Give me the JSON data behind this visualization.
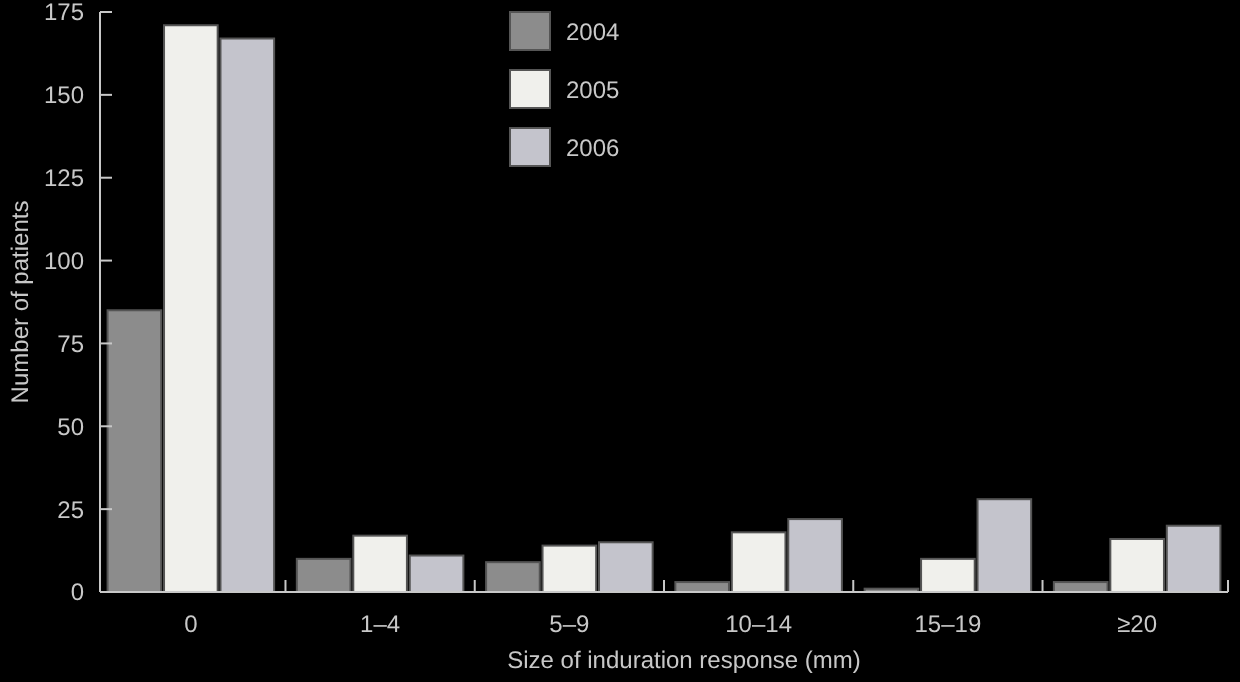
{
  "chart_data": {
    "type": "bar",
    "xlabel": "Size of induration response (mm)",
    "ylabel": "Number of patients",
    "categories": [
      "0",
      "1–4",
      "5–9",
      "10–14",
      "15–19",
      "≥20"
    ],
    "series": [
      {
        "name": "2004",
        "color": "#8c8c8c",
        "values": [
          85,
          10,
          9,
          3,
          1,
          3
        ]
      },
      {
        "name": "2005",
        "color": "#f0f0ec",
        "values": [
          171,
          17,
          14,
          18,
          10,
          16
        ]
      },
      {
        "name": "2006",
        "color": "#c4c4cc",
        "values": [
          167,
          11,
          15,
          22,
          28,
          20
        ]
      }
    ],
    "ylim": [
      0,
      175
    ],
    "yticks": [
      0,
      25,
      50,
      75,
      100,
      125,
      150,
      175
    ],
    "grid": false,
    "legend": "top"
  }
}
